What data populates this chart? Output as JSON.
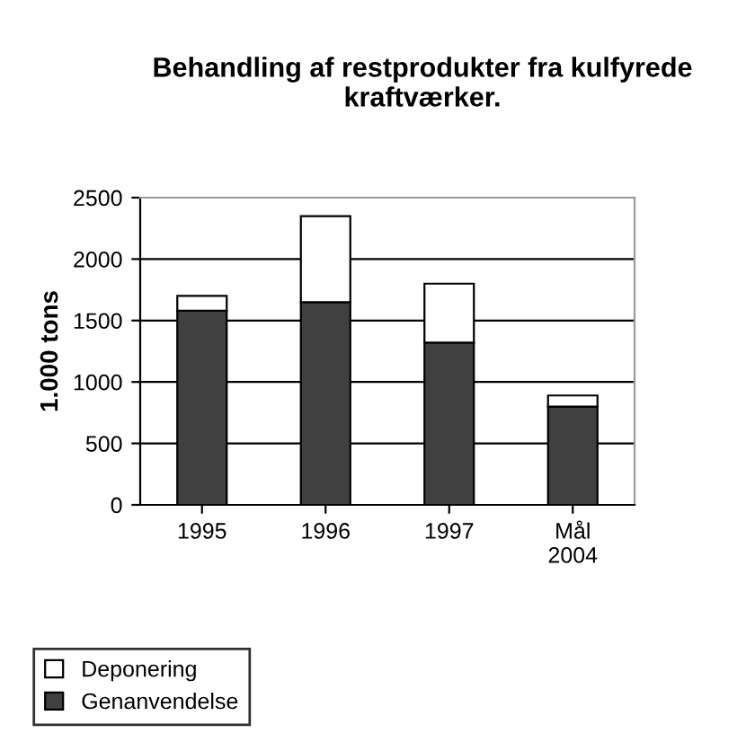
{
  "chart_data": {
    "type": "bar",
    "title": "Behandling af restprodukter fra kulfyrede kraftværker.",
    "ylabel": "1.000 tons",
    "categories": [
      "1995",
      "1996",
      "1997",
      "Mål\n2004"
    ],
    "stacked": true,
    "series": [
      {
        "name": "Genanvendelse",
        "color": "#404040",
        "values": [
          1580,
          1650,
          1320,
          800
        ]
      },
      {
        "name": "Deponering",
        "color": "#ffffff",
        "values": [
          120,
          700,
          480,
          90
        ]
      }
    ],
    "ylim": [
      0,
      2500
    ],
    "yticks": [
      0,
      500,
      1000,
      1500,
      2000,
      2500
    ],
    "grid": "y",
    "legend": "bottom left"
  }
}
